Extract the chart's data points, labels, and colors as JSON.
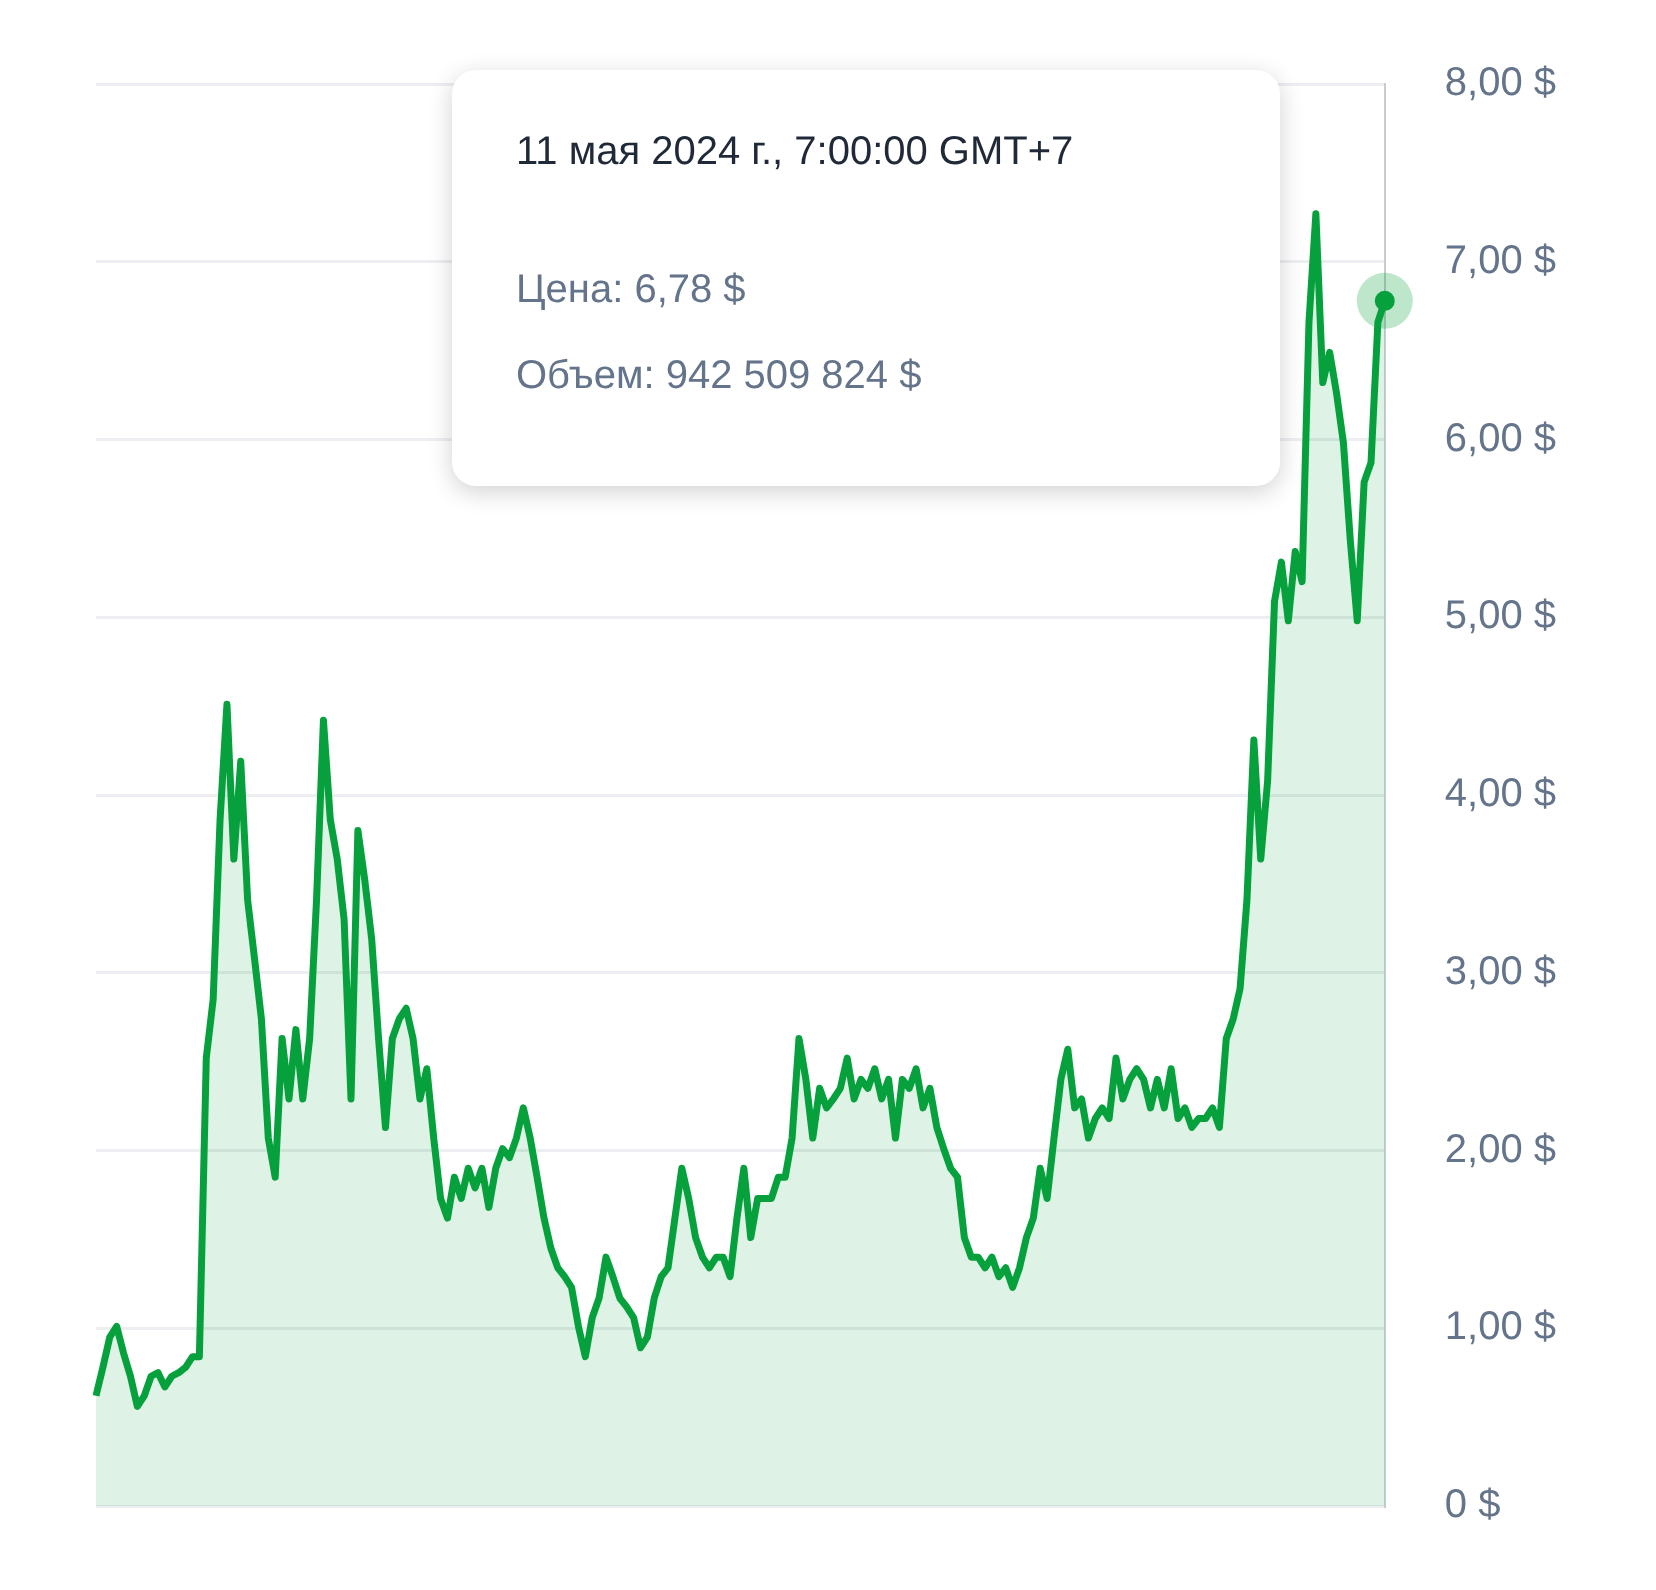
{
  "chart_data": {
    "type": "area",
    "categories": [
      null,
      null,
      null,
      null,
      null,
      null,
      null,
      null,
      null,
      null,
      null,
      null,
      null,
      null,
      null,
      null,
      null,
      null,
      null,
      null,
      null,
      null,
      null,
      null,
      null,
      null,
      null,
      null,
      null,
      null,
      null,
      null,
      null,
      null,
      null,
      null,
      null,
      null,
      null,
      null,
      null,
      null,
      null,
      null,
      null,
      null,
      null,
      null,
      null,
      null,
      null,
      null,
      null,
      null,
      null,
      null,
      null,
      null,
      null,
      null,
      null,
      null,
      null,
      null,
      null,
      null,
      null,
      null,
      null,
      null,
      null,
      null,
      null,
      null,
      null,
      null,
      null,
      null,
      null,
      null,
      null,
      null,
      null,
      null,
      null,
      null,
      null,
      null,
      null,
      null,
      null,
      null,
      null,
      null,
      null,
      null,
      null,
      null,
      null,
      null,
      null,
      null,
      null,
      null,
      null,
      null,
      null,
      null,
      null,
      null,
      null,
      null,
      null,
      null,
      null,
      null,
      null,
      null,
      null,
      null,
      null,
      null,
      null,
      null,
      null,
      null,
      null,
      null,
      null,
      null,
      null,
      null,
      null,
      null,
      null,
      null,
      null,
      null,
      null,
      null,
      null,
      null,
      null,
      null,
      null,
      null,
      null,
      null,
      null,
      null,
      null,
      null,
      null,
      null,
      null,
      null,
      null,
      null,
      null,
      null,
      null,
      null,
      null,
      null,
      null,
      null,
      null,
      null,
      null,
      null,
      null,
      null,
      null,
      null,
      null,
      null,
      null,
      null,
      null,
      null,
      null,
      null,
      null,
      null,
      null,
      null,
      null,
      null
    ],
    "series": [
      {
        "color": "#06a13d",
        "values": [
          0.62,
          0.78,
          0.95,
          1.01,
          0.86,
          0.73,
          0.56,
          0.62,
          0.73,
          0.75,
          0.67,
          0.73,
          0.75,
          0.78,
          0.84,
          0.84,
          2.52,
          2.85,
          3.86,
          4.51,
          3.64,
          4.19,
          3.41,
          3.08,
          2.74,
          2.07,
          1.85,
          2.63,
          2.29,
          2.68,
          2.29,
          2.63,
          3.41,
          4.42,
          3.86,
          3.64,
          3.3,
          2.29,
          3.8,
          3.52,
          3.19,
          2.63,
          2.13,
          2.63,
          2.74,
          2.8,
          2.63,
          2.29,
          2.46,
          2.07,
          1.73,
          1.62,
          1.85,
          1.73,
          1.9,
          1.79,
          1.9,
          1.68,
          1.9,
          2.01,
          1.96,
          2.07,
          2.24,
          2.07,
          1.85,
          1.62,
          1.45,
          1.34,
          1.29,
          1.23,
          1.01,
          0.84,
          1.06,
          1.17,
          1.4,
          1.29,
          1.17,
          1.12,
          1.06,
          0.89,
          0.95,
          1.17,
          1.29,
          1.34,
          1.62,
          1.9,
          1.73,
          1.51,
          1.4,
          1.34,
          1.4,
          1.4,
          1.29,
          1.62,
          1.9,
          1.51,
          1.73,
          1.73,
          1.73,
          1.85,
          1.85,
          2.07,
          2.63,
          2.4,
          2.07,
          2.35,
          2.24,
          2.29,
          2.35,
          2.52,
          2.29,
          2.4,
          2.35,
          2.46,
          2.29,
          2.4,
          2.07,
          2.4,
          2.35,
          2.46,
          2.24,
          2.35,
          2.13,
          2.01,
          1.9,
          1.85,
          1.51,
          1.4,
          1.4,
          1.34,
          1.4,
          1.29,
          1.34,
          1.23,
          1.34,
          1.51,
          1.62,
          1.9,
          1.73,
          2.07,
          2.4,
          2.57,
          2.24,
          2.29,
          2.07,
          2.18,
          2.24,
          2.18,
          2.52,
          2.29,
          2.4,
          2.46,
          2.4,
          2.24,
          2.4,
          2.24,
          2.46,
          2.18,
          2.24,
          2.13,
          2.18,
          2.18,
          2.24,
          2.13,
          2.63,
          2.74,
          2.91,
          3.41,
          4.31,
          3.64,
          4.08,
          5.09,
          5.31,
          4.98,
          5.37,
          5.2,
          6.66,
          7.27,
          6.32,
          6.49,
          6.26,
          5.98,
          5.43,
          4.98,
          5.76,
          5.87,
          6.66,
          6.78
        ]
      }
    ],
    "ylim": [
      0,
      8
    ],
    "yticks": [
      {
        "value": 0,
        "label": "0 $"
      },
      {
        "value": 1,
        "label": "1,00 $"
      },
      {
        "value": 2,
        "label": "2,00 $"
      },
      {
        "value": 3,
        "label": "3,00 $"
      },
      {
        "value": 4,
        "label": "4,00 $"
      },
      {
        "value": 5,
        "label": "5,00 $"
      },
      {
        "value": 6,
        "label": "6,00 $"
      },
      {
        "value": 7,
        "label": "7,00 $"
      },
      {
        "value": 8,
        "label": "8,00 $"
      }
    ],
    "grid": "y",
    "legend": false,
    "tick_labels": "y",
    "marker": "none",
    "line_style": "solid",
    "annotations": [
      "11 мая 2024 г., 7:00:00 GMT+7",
      "Цена: 6,78 $",
      "Объем: 942 509 824 $"
    ]
  }
}
